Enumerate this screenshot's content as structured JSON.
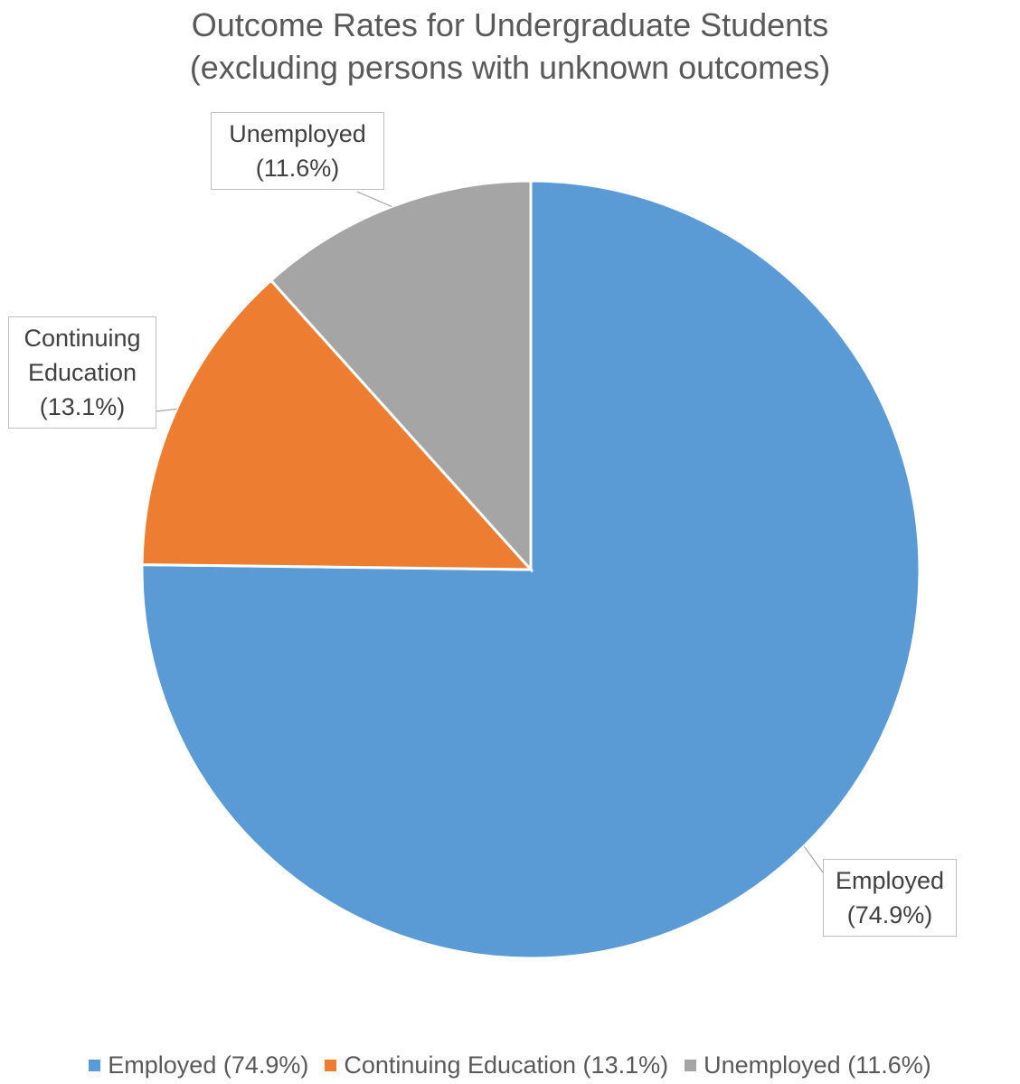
{
  "chart_data": {
    "type": "pie",
    "title": "Outcome Rates for Undergraduate Students",
    "subtitle": "(excluding persons with unknown outcomes)",
    "slices": [
      {
        "name": "Employed",
        "value": 74.9,
        "label_lines": [
          "Employed",
          "(74.9%)"
        ],
        "legend": "Employed (74.9%)",
        "color": "#5B9BD5"
      },
      {
        "name": "Continuing Education",
        "value": 13.1,
        "label_lines": [
          "Continuing",
          "Education",
          "(13.1%)"
        ],
        "legend": "Continuing Education (13.1%)",
        "color": "#ED7D31"
      },
      {
        "name": "Unemployed",
        "value": 11.6,
        "label_lines": [
          "Unemployed",
          "(11.6%)"
        ],
        "legend": "Unemployed (11.6%)",
        "color": "#A5A5A5"
      }
    ],
    "legend_position": "bottom"
  }
}
